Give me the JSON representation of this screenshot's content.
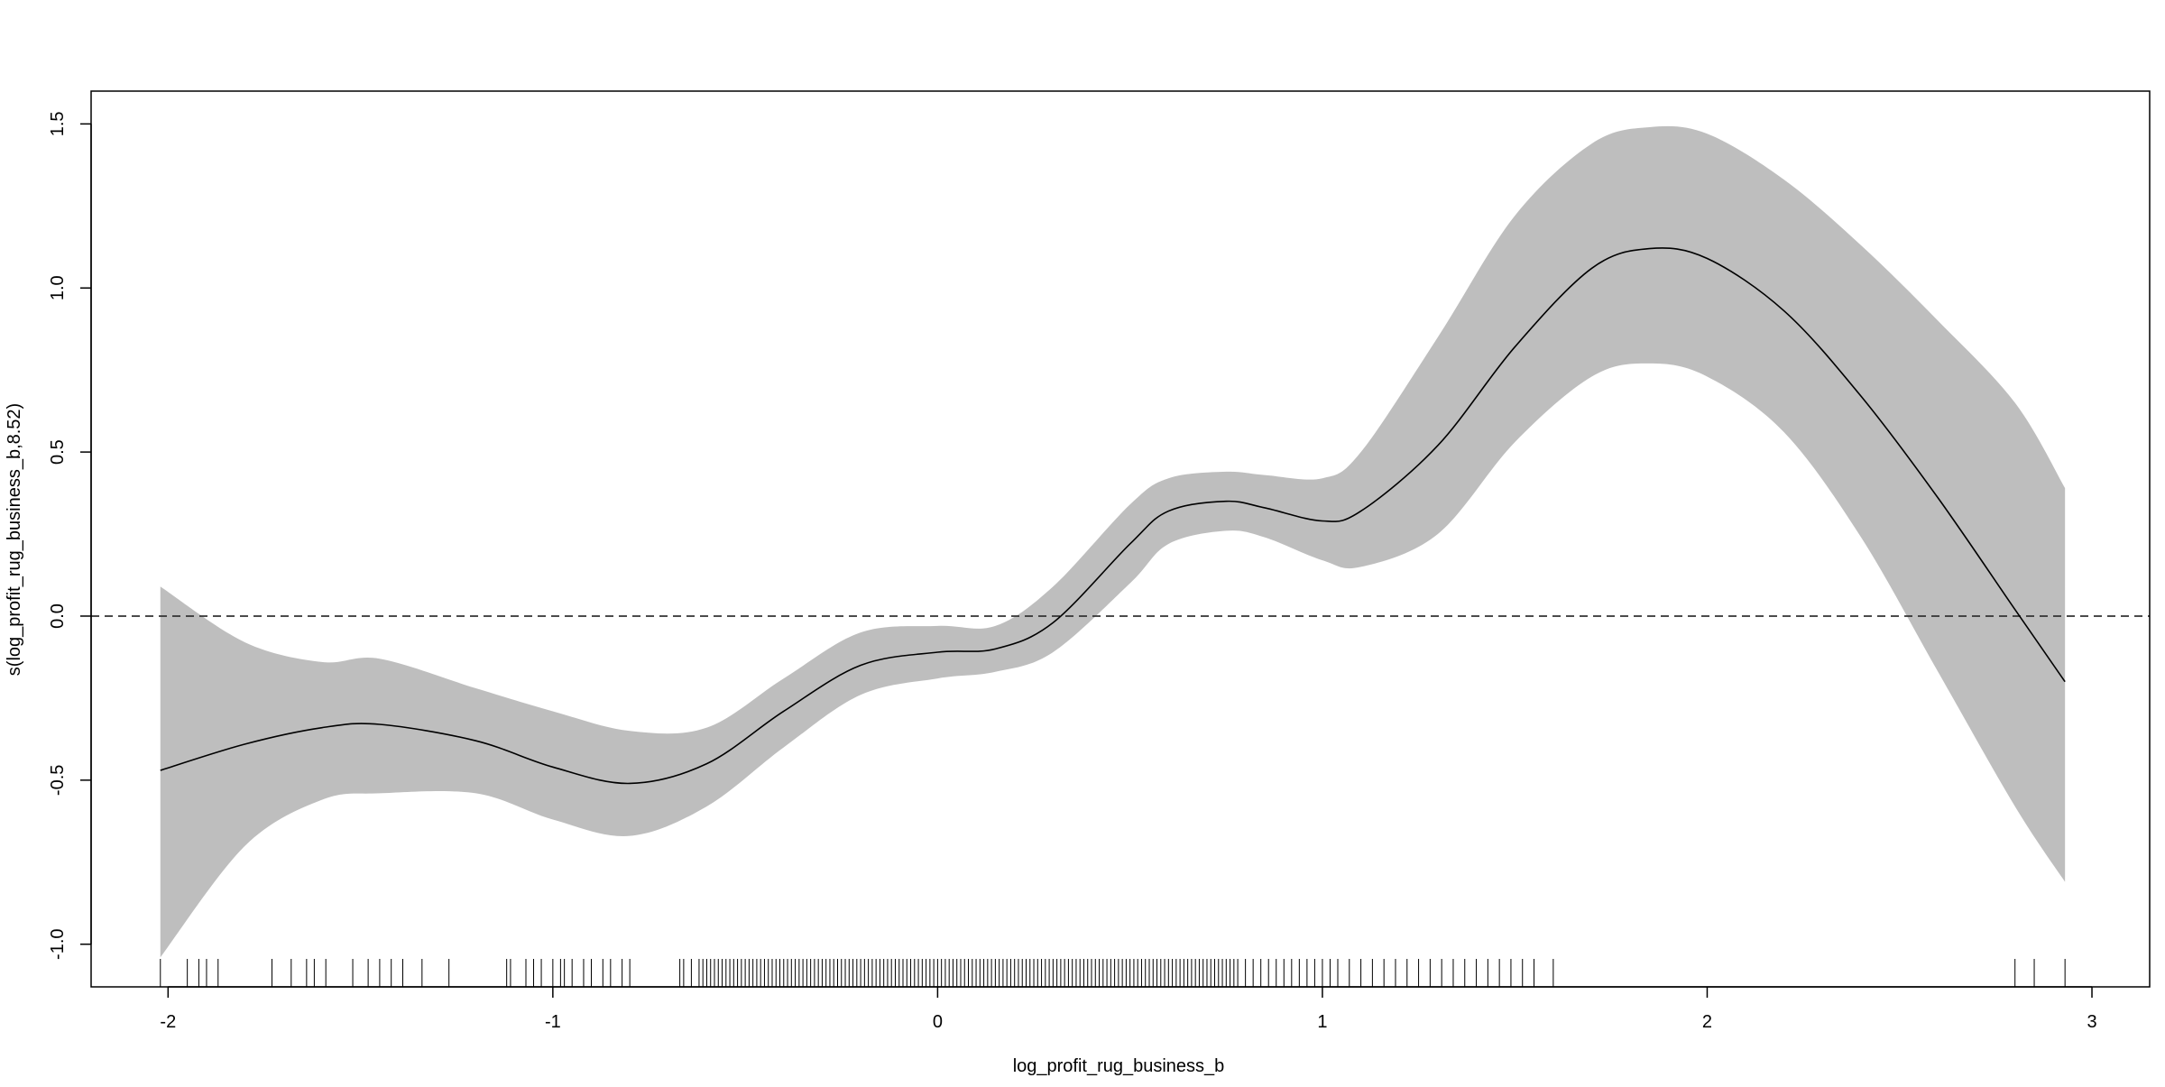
{
  "colors": {
    "background": "#ffffff",
    "band": "#bebebe",
    "line": "#000000",
    "reference_line": "#333333",
    "rug": "#000000"
  },
  "chart_data": {
    "type": "line",
    "title": "",
    "xlabel": "log_profit_rug_business_b",
    "ylabel": "s(log_profit_rug_business_b,8.52)",
    "xlim": [
      -2.2,
      3.15
    ],
    "ylim": [
      -1.13,
      1.6
    ],
    "xticks": [
      -2,
      -1,
      0,
      1,
      2,
      3
    ],
    "xtick_labels": [
      "-2",
      "-1",
      "0",
      "1",
      "2",
      "3"
    ],
    "yticks": [
      -1.0,
      -0.5,
      0.0,
      0.5,
      1.0,
      1.5
    ],
    "ytick_labels": [
      "-1.0",
      "-0.5",
      "0.0",
      "0.5",
      "1.0",
      "1.5"
    ],
    "grid": false,
    "reference_line": {
      "y": 0,
      "style": "dashed"
    },
    "x": [
      -2.02,
      -1.8,
      -1.6,
      -1.45,
      -1.2,
      -1.0,
      -0.8,
      -0.6,
      -0.4,
      -0.2,
      0.0,
      0.15,
      0.3,
      0.5,
      0.6,
      0.75,
      0.85,
      1.0,
      1.1,
      1.3,
      1.5,
      1.7,
      1.85,
      2.0,
      2.2,
      2.4,
      2.6,
      2.8,
      2.93
    ],
    "series": [
      {
        "role": "fit",
        "values": [
          -0.47,
          -0.39,
          -0.34,
          -0.33,
          -0.38,
          -0.46,
          -0.51,
          -0.45,
          -0.29,
          -0.15,
          -0.11,
          -0.1,
          -0.02,
          0.22,
          0.32,
          0.35,
          0.33,
          0.29,
          0.32,
          0.52,
          0.82,
          1.06,
          1.12,
          1.09,
          0.93,
          0.67,
          0.36,
          0.02,
          -0.2
        ]
      },
      {
        "role": "upper",
        "values": [
          0.09,
          -0.08,
          -0.14,
          -0.13,
          -0.22,
          -0.29,
          -0.35,
          -0.34,
          -0.19,
          -0.05,
          -0.03,
          -0.03,
          0.09,
          0.34,
          0.42,
          0.44,
          0.43,
          0.42,
          0.5,
          0.85,
          1.22,
          1.44,
          1.49,
          1.47,
          1.33,
          1.13,
          0.9,
          0.65,
          0.39
        ]
      },
      {
        "role": "lower",
        "values": [
          -1.04,
          -0.7,
          -0.56,
          -0.54,
          -0.54,
          -0.62,
          -0.67,
          -0.58,
          -0.4,
          -0.24,
          -0.19,
          -0.17,
          -0.11,
          0.1,
          0.22,
          0.26,
          0.24,
          0.17,
          0.15,
          0.25,
          0.53,
          0.73,
          0.77,
          0.73,
          0.56,
          0.24,
          -0.17,
          -0.58,
          -0.81
        ]
      }
    ],
    "rug_x": [
      -2.02,
      -1.95,
      -1.92,
      -1.9,
      -1.87,
      -1.73,
      -1.68,
      -1.64,
      -1.62,
      -1.59,
      -1.52,
      -1.48,
      -1.45,
      -1.42,
      -1.39,
      -1.34,
      -1.27,
      -1.12,
      -1.11,
      -1.07,
      -1.05,
      -1.03,
      -1.0,
      -0.98,
      -0.97,
      -0.95,
      -0.92,
      -0.9,
      -0.87,
      -0.85,
      -0.82,
      -0.8,
      -0.67,
      -0.66,
      -0.64,
      -0.62,
      -0.61,
      -0.6,
      -0.59,
      -0.58,
      -0.57,
      -0.56,
      -0.55,
      -0.54,
      -0.53,
      -0.52,
      -0.51,
      -0.5,
      -0.49,
      -0.48,
      -0.47,
      -0.46,
      -0.45,
      -0.44,
      -0.43,
      -0.42,
      -0.41,
      -0.4,
      -0.39,
      -0.38,
      -0.37,
      -0.36,
      -0.35,
      -0.34,
      -0.33,
      -0.32,
      -0.31,
      -0.3,
      -0.29,
      -0.28,
      -0.27,
      -0.26,
      -0.25,
      -0.24,
      -0.23,
      -0.22,
      -0.21,
      -0.2,
      -0.19,
      -0.18,
      -0.17,
      -0.16,
      -0.15,
      -0.14,
      -0.13,
      -0.12,
      -0.11,
      -0.1,
      -0.09,
      -0.08,
      -0.07,
      -0.06,
      -0.05,
      -0.04,
      -0.03,
      -0.02,
      -0.01,
      0.0,
      0.01,
      0.02,
      0.03,
      0.04,
      0.05,
      0.06,
      0.07,
      0.08,
      0.09,
      0.1,
      0.11,
      0.12,
      0.13,
      0.14,
      0.15,
      0.16,
      0.17,
      0.18,
      0.19,
      0.2,
      0.21,
      0.22,
      0.23,
      0.24,
      0.25,
      0.26,
      0.27,
      0.28,
      0.29,
      0.3,
      0.31,
      0.32,
      0.33,
      0.34,
      0.35,
      0.36,
      0.37,
      0.38,
      0.39,
      0.4,
      0.41,
      0.42,
      0.43,
      0.44,
      0.45,
      0.46,
      0.47,
      0.48,
      0.49,
      0.5,
      0.51,
      0.52,
      0.53,
      0.54,
      0.55,
      0.56,
      0.57,
      0.58,
      0.59,
      0.6,
      0.61,
      0.62,
      0.63,
      0.64,
      0.65,
      0.66,
      0.67,
      0.68,
      0.69,
      0.7,
      0.71,
      0.72,
      0.73,
      0.74,
      0.75,
      0.76,
      0.77,
      0.78,
      0.8,
      0.82,
      0.84,
      0.86,
      0.88,
      0.9,
      0.92,
      0.94,
      0.96,
      0.98,
      1.0,
      1.02,
      1.04,
      1.07,
      1.1,
      1.13,
      1.16,
      1.19,
      1.22,
      1.25,
      1.28,
      1.31,
      1.34,
      1.37,
      1.4,
      1.43,
      1.46,
      1.49,
      1.52,
      1.55,
      1.6,
      2.8,
      2.85,
      2.93
    ]
  }
}
